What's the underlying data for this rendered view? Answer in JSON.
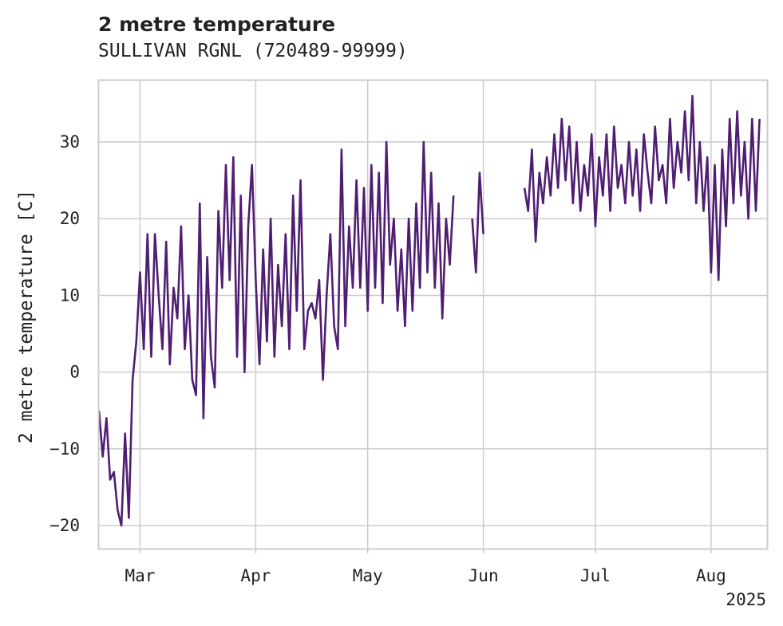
{
  "chart_data": {
    "type": "line",
    "title": "2 metre temperature",
    "subtitle": "SULLIVAN RGNL (720489-99999)",
    "ylabel": "2 metre temperature [C]",
    "xlabel": "",
    "year_label": "2025",
    "x_ticks": [
      {
        "date": "2025-03-01",
        "label": "Mar"
      },
      {
        "date": "2025-04-01",
        "label": "Apr"
      },
      {
        "date": "2025-05-01",
        "label": "May"
      },
      {
        "date": "2025-06-01",
        "label": "Jun"
      },
      {
        "date": "2025-07-01",
        "label": "Jul"
      },
      {
        "date": "2025-08-01",
        "label": "Aug"
      }
    ],
    "y_ticks": [
      -20,
      -10,
      0,
      10,
      20,
      30
    ],
    "xlim": [
      "2025-02-18",
      "2025-08-16"
    ],
    "ylim": [
      -23,
      38
    ],
    "grid": true,
    "series": [
      {
        "color": "#4f1e72",
        "points": [
          [
            "2025-02-18",
            -5
          ],
          [
            "2025-02-19",
            -11
          ],
          [
            "2025-02-20",
            -6
          ],
          [
            "2025-02-21",
            -14
          ],
          [
            "2025-02-22",
            -13
          ],
          [
            "2025-02-23",
            -18
          ],
          [
            "2025-02-24",
            -20
          ],
          [
            "2025-02-25",
            -8
          ],
          [
            "2025-02-26",
            -19
          ],
          [
            "2025-02-27",
            -1
          ],
          [
            "2025-02-28",
            4
          ],
          [
            "2025-03-01",
            13
          ],
          [
            "2025-03-02",
            3
          ],
          [
            "2025-03-03",
            18
          ],
          [
            "2025-03-04",
            2
          ],
          [
            "2025-03-05",
            18
          ],
          [
            "2025-03-06",
            10
          ],
          [
            "2025-03-07",
            3
          ],
          [
            "2025-03-08",
            17
          ],
          [
            "2025-03-09",
            1
          ],
          [
            "2025-03-10",
            11
          ],
          [
            "2025-03-11",
            7
          ],
          [
            "2025-03-12",
            19
          ],
          [
            "2025-03-13",
            3
          ],
          [
            "2025-03-14",
            10
          ],
          [
            "2025-03-15",
            -1
          ],
          [
            "2025-03-16",
            -3
          ],
          [
            "2025-03-17",
            22
          ],
          [
            "2025-03-18",
            -6
          ],
          [
            "2025-03-19",
            15
          ],
          [
            "2025-03-20",
            2
          ],
          [
            "2025-03-21",
            -2
          ],
          [
            "2025-03-22",
            21
          ],
          [
            "2025-03-23",
            11
          ],
          [
            "2025-03-24",
            27
          ],
          [
            "2025-03-25",
            12
          ],
          [
            "2025-03-26",
            28
          ],
          [
            "2025-03-27",
            2
          ],
          [
            "2025-03-28",
            23
          ],
          [
            "2025-03-29",
            0
          ],
          [
            "2025-03-30",
            19
          ],
          [
            "2025-03-31",
            27
          ],
          [
            "2025-04-01",
            12
          ],
          [
            "2025-04-02",
            1
          ],
          [
            "2025-04-03",
            16
          ],
          [
            "2025-04-04",
            4
          ],
          [
            "2025-04-05",
            20
          ],
          [
            "2025-04-06",
            2
          ],
          [
            "2025-04-07",
            14
          ],
          [
            "2025-04-08",
            6
          ],
          [
            "2025-04-09",
            18
          ],
          [
            "2025-04-10",
            3
          ],
          [
            "2025-04-11",
            23
          ],
          [
            "2025-04-12",
            8
          ],
          [
            "2025-04-13",
            25
          ],
          [
            "2025-04-14",
            3
          ],
          [
            "2025-04-15",
            8
          ],
          [
            "2025-04-16",
            9
          ],
          [
            "2025-04-17",
            7
          ],
          [
            "2025-04-18",
            12
          ],
          [
            "2025-04-19",
            -1
          ],
          [
            "2025-04-20",
            10
          ],
          [
            "2025-04-21",
            18
          ],
          [
            "2025-04-22",
            6
          ],
          [
            "2025-04-23",
            3
          ],
          [
            "2025-04-24",
            29
          ],
          [
            "2025-04-25",
            6
          ],
          [
            "2025-04-26",
            19
          ],
          [
            "2025-04-27",
            11
          ],
          [
            "2025-04-28",
            25
          ],
          [
            "2025-04-29",
            11
          ],
          [
            "2025-04-30",
            24
          ],
          [
            "2025-05-01",
            8
          ],
          [
            "2025-05-02",
            27
          ],
          [
            "2025-05-03",
            11
          ],
          [
            "2025-05-04",
            26
          ],
          [
            "2025-05-05",
            9
          ],
          [
            "2025-05-06",
            30
          ],
          [
            "2025-05-07",
            14
          ],
          [
            "2025-05-08",
            20
          ],
          [
            "2025-05-09",
            8
          ],
          [
            "2025-05-10",
            16
          ],
          [
            "2025-05-11",
            6
          ],
          [
            "2025-05-12",
            20
          ],
          [
            "2025-05-13",
            8
          ],
          [
            "2025-05-14",
            22
          ],
          [
            "2025-05-15",
            11
          ],
          [
            "2025-05-16",
            30
          ],
          [
            "2025-05-17",
            13
          ],
          [
            "2025-05-18",
            26
          ],
          [
            "2025-05-19",
            11
          ],
          [
            "2025-05-20",
            22
          ],
          [
            "2025-05-21",
            7
          ],
          [
            "2025-05-22",
            20
          ],
          [
            "2025-05-23",
            14
          ],
          [
            "2025-05-24",
            23
          ],
          null,
          [
            "2025-05-29",
            20
          ],
          [
            "2025-05-30",
            13
          ],
          [
            "2025-05-31",
            26
          ],
          [
            "2025-06-01",
            18
          ],
          null,
          [
            "2025-06-12",
            24
          ],
          [
            "2025-06-13",
            21
          ],
          [
            "2025-06-14",
            29
          ],
          [
            "2025-06-15",
            17
          ],
          [
            "2025-06-16",
            26
          ],
          [
            "2025-06-17",
            22
          ],
          [
            "2025-06-18",
            28
          ],
          [
            "2025-06-19",
            23
          ],
          [
            "2025-06-20",
            31
          ],
          [
            "2025-06-21",
            24
          ],
          [
            "2025-06-22",
            33
          ],
          [
            "2025-06-23",
            25
          ],
          [
            "2025-06-24",
            32
          ],
          [
            "2025-06-25",
            22
          ],
          [
            "2025-06-26",
            30
          ],
          [
            "2025-06-27",
            21
          ],
          [
            "2025-06-28",
            27
          ],
          [
            "2025-06-29",
            23
          ],
          [
            "2025-06-30",
            31
          ],
          [
            "2025-07-01",
            19
          ],
          [
            "2025-07-02",
            28
          ],
          [
            "2025-07-03",
            23
          ],
          [
            "2025-07-04",
            31
          ],
          [
            "2025-07-05",
            21
          ],
          [
            "2025-07-06",
            32
          ],
          [
            "2025-07-07",
            24
          ],
          [
            "2025-07-08",
            27
          ],
          [
            "2025-07-09",
            22
          ],
          [
            "2025-07-10",
            30
          ],
          [
            "2025-07-11",
            23
          ],
          [
            "2025-07-12",
            29
          ],
          [
            "2025-07-13",
            21
          ],
          [
            "2025-07-14",
            31
          ],
          [
            "2025-07-15",
            26
          ],
          [
            "2025-07-16",
            22
          ],
          [
            "2025-07-17",
            32
          ],
          [
            "2025-07-18",
            25
          ],
          [
            "2025-07-19",
            27
          ],
          [
            "2025-07-20",
            22
          ],
          [
            "2025-07-21",
            33
          ],
          [
            "2025-07-22",
            24
          ],
          [
            "2025-07-23",
            30
          ],
          [
            "2025-07-24",
            26
          ],
          [
            "2025-07-25",
            34
          ],
          [
            "2025-07-26",
            25
          ],
          [
            "2025-07-27",
            36
          ],
          [
            "2025-07-28",
            22
          ],
          [
            "2025-07-29",
            30
          ],
          [
            "2025-07-30",
            21
          ],
          [
            "2025-07-31",
            28
          ],
          [
            "2025-08-01",
            13
          ],
          [
            "2025-08-02",
            27
          ],
          [
            "2025-08-03",
            12
          ],
          [
            "2025-08-04",
            29
          ],
          [
            "2025-08-05",
            19
          ],
          [
            "2025-08-06",
            33
          ],
          [
            "2025-08-07",
            22
          ],
          [
            "2025-08-08",
            34
          ],
          [
            "2025-08-09",
            23
          ],
          [
            "2025-08-10",
            30
          ],
          [
            "2025-08-11",
            20
          ],
          [
            "2025-08-12",
            33
          ],
          [
            "2025-08-13",
            21
          ],
          [
            "2025-08-14",
            33
          ]
        ]
      }
    ]
  }
}
